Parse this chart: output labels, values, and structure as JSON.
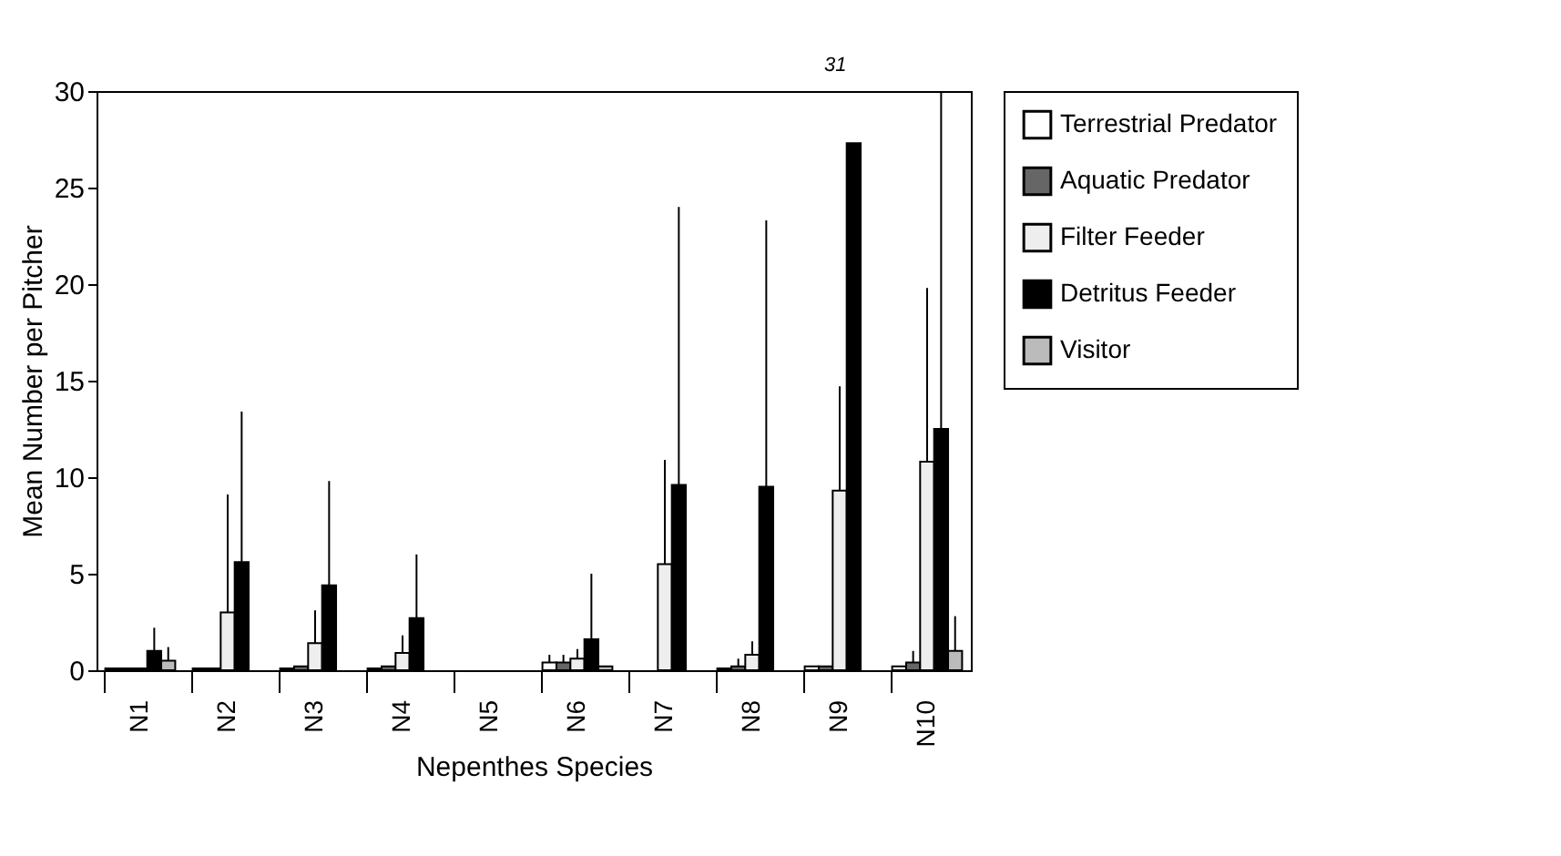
{
  "chart_data": {
    "type": "bar",
    "xlabel": "Nepenthes Species",
    "ylabel": "Mean Number per Pitcher",
    "categories": [
      "N1",
      "N2",
      "N3",
      "N4",
      "N5",
      "N6",
      "N7",
      "N8",
      "N9",
      "N10"
    ],
    "series": [
      {
        "name": "Terrestrial Predator",
        "color": "#ffffff",
        "values": [
          0.1,
          0.1,
          0.1,
          0.1,
          null,
          0.4,
          null,
          0.1,
          0.2,
          0.2
        ],
        "errors": [
          null,
          null,
          null,
          null,
          null,
          [
            0.4,
            0.8
          ],
          null,
          null,
          null,
          null
        ]
      },
      {
        "name": "Aquatic Predator",
        "color": "#666666",
        "values": [
          0.1,
          0.1,
          0.2,
          0.2,
          null,
          0.4,
          null,
          0.2,
          0.2,
          0.4
        ],
        "errors": [
          null,
          null,
          null,
          null,
          null,
          [
            0.4,
            0.8
          ],
          null,
          [
            0.2,
            0.6
          ],
          null,
          [
            0.4,
            1.0
          ]
        ]
      },
      {
        "name": "Filter Feeder",
        "color": "#eeeeee",
        "values": [
          0.1,
          3.0,
          1.4,
          0.9,
          null,
          0.6,
          5.5,
          0.8,
          9.3,
          10.8
        ],
        "errors": [
          null,
          [
            3.0,
            9.1
          ],
          [
            1.4,
            3.1
          ],
          [
            0.9,
            1.8
          ],
          null,
          [
            0.6,
            1.1
          ],
          [
            5.5,
            10.9
          ],
          [
            0.8,
            1.5
          ],
          [
            9.3,
            14.7
          ],
          [
            10.8,
            19.8
          ]
        ]
      },
      {
        "name": "Detritus Feeder",
        "color": "#000000",
        "values": [
          1.0,
          5.6,
          4.4,
          2.7,
          null,
          1.6,
          9.6,
          9.5,
          27.3,
          12.5
        ],
        "errors": [
          [
            1.0,
            2.2
          ],
          [
            5.6,
            13.4
          ],
          [
            4.4,
            9.8
          ],
          [
            2.7,
            6.0
          ],
          null,
          [
            1.6,
            5.0
          ],
          [
            9.6,
            24.0
          ],
          [
            9.5,
            23.3
          ],
          null,
          [
            12.5,
            30
          ]
        ]
      },
      {
        "name": "Visitor",
        "color": "#bbbbbb",
        "values": [
          0.5,
          null,
          null,
          null,
          null,
          0.2,
          null,
          null,
          null,
          1.0
        ],
        "errors": [
          [
            0.5,
            1.2
          ],
          null,
          null,
          null,
          null,
          null,
          null,
          null,
          null,
          [
            1.0,
            2.8
          ]
        ]
      }
    ],
    "ylim": [
      0,
      30
    ],
    "yticks": [
      0,
      5,
      10,
      15,
      20,
      25,
      30
    ],
    "grid": false,
    "legend": "top right",
    "annotations": [
      "31"
    ]
  }
}
